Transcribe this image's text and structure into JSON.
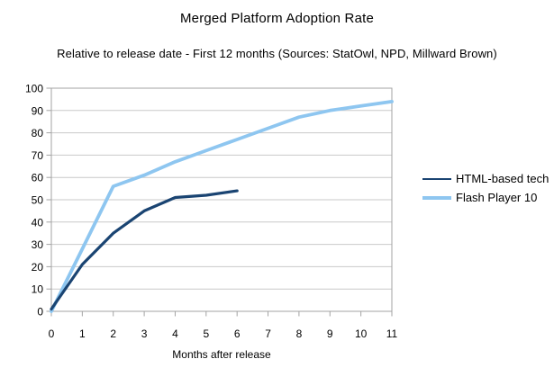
{
  "title": "Merged Platform Adoption Rate",
  "subtitle": "Relative to release date - First 12 months (Sources: StatOwl, NPD, Millward Brown)",
  "chart_data": {
    "type": "line",
    "title": "Merged Platform Adoption Rate",
    "subtitle": "Relative to release date - First 12 months (Sources: StatOwl, NPD, Millward Brown)",
    "xlabel": "Months after release",
    "ylabel": "",
    "x": [
      0,
      1,
      2,
      3,
      4,
      5,
      6,
      7,
      8,
      9,
      10,
      11
    ],
    "series": [
      {
        "name": "HTML-based tech",
        "color": "#1a4472",
        "line_width": 3.2,
        "values": [
          1,
          21,
          35,
          45,
          51,
          52,
          54
        ]
      },
      {
        "name": "Flash Player 10",
        "color": "#8ec6f0",
        "line_width": 3.8,
        "values": [
          0,
          28,
          56,
          61,
          67,
          72,
          77,
          82,
          87,
          90,
          92,
          94
        ]
      }
    ],
    "xlim": [
      0,
      11
    ],
    "ylim": [
      0,
      100
    ],
    "xticks": [
      0,
      1,
      2,
      3,
      4,
      5,
      6,
      7,
      8,
      9,
      10,
      11
    ],
    "yticks": [
      0,
      10,
      20,
      30,
      40,
      50,
      60,
      70,
      80,
      90,
      100
    ],
    "grid": true,
    "legend_position": "right",
    "colors": {
      "grid": "#c9c9c9",
      "axis": "#a3a3a3"
    }
  }
}
